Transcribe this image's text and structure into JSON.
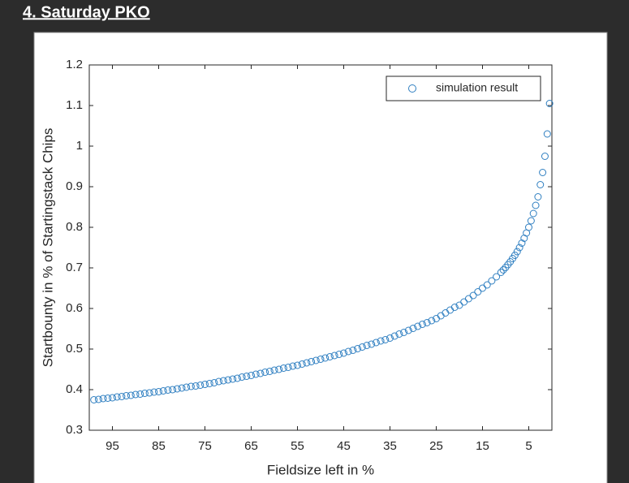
{
  "header": {
    "title": "4. Saturday PKO"
  },
  "chart_data": {
    "type": "scatter",
    "xlabel": "Fieldsize left in %",
    "ylabel": "Startbounty in % of Startingstack Chips",
    "xlim": [
      100,
      0
    ],
    "ylim": [
      0.3,
      1.2
    ],
    "xticks": [
      95,
      85,
      75,
      65,
      55,
      45,
      35,
      25,
      15,
      5
    ],
    "yticks": [
      0.3,
      0.4,
      0.5,
      0.6,
      0.7,
      0.8,
      0.9,
      1,
      1.1,
      1.2
    ],
    "legend": "upper right",
    "series": [
      {
        "name": "simulation result",
        "color": "#2f7fc1",
        "x": [
          99,
          98,
          97,
          96,
          95,
          94,
          93,
          92,
          91,
          90,
          89,
          88,
          87,
          86,
          85,
          84,
          83,
          82,
          81,
          80,
          79,
          78,
          77,
          76,
          75,
          74,
          73,
          72,
          71,
          70,
          69,
          68,
          67,
          66,
          65,
          64,
          63,
          62,
          61,
          60,
          59,
          58,
          57,
          56,
          55,
          54,
          53,
          52,
          51,
          50,
          49,
          48,
          47,
          46,
          45,
          44,
          43,
          42,
          41,
          40,
          39,
          38,
          37,
          36,
          35,
          34,
          33,
          32,
          31,
          30,
          29,
          28,
          27,
          26,
          25,
          24,
          23,
          22,
          21,
          20,
          19,
          18,
          17,
          16,
          15,
          14,
          13,
          12,
          11,
          10.5,
          10,
          9.5,
          9,
          8.5,
          8,
          7.5,
          7,
          6.5,
          6,
          5.5,
          5,
          4.5,
          4,
          3.5,
          3,
          2.5,
          2,
          1.5,
          1,
          0.5
        ],
        "values": [
          0.375,
          0.376,
          0.378,
          0.379,
          0.38,
          0.382,
          0.383,
          0.385,
          0.386,
          0.388,
          0.389,
          0.391,
          0.392,
          0.394,
          0.395,
          0.397,
          0.399,
          0.4,
          0.402,
          0.404,
          0.406,
          0.408,
          0.409,
          0.411,
          0.413,
          0.415,
          0.417,
          0.42,
          0.422,
          0.424,
          0.426,
          0.428,
          0.431,
          0.433,
          0.435,
          0.438,
          0.44,
          0.443,
          0.445,
          0.448,
          0.45,
          0.453,
          0.455,
          0.458,
          0.46,
          0.463,
          0.466,
          0.469,
          0.472,
          0.475,
          0.478,
          0.481,
          0.484,
          0.487,
          0.49,
          0.494,
          0.497,
          0.501,
          0.505,
          0.509,
          0.512,
          0.516,
          0.52,
          0.523,
          0.527,
          0.532,
          0.537,
          0.541,
          0.546,
          0.551,
          0.556,
          0.561,
          0.565,
          0.57,
          0.575,
          0.582,
          0.589,
          0.596,
          0.603,
          0.608,
          0.616,
          0.624,
          0.632,
          0.641,
          0.65,
          0.658,
          0.668,
          0.678,
          0.689,
          0.695,
          0.701,
          0.708,
          0.715,
          0.723,
          0.731,
          0.74,
          0.75,
          0.761,
          0.773,
          0.786,
          0.8,
          0.816,
          0.834,
          0.854,
          0.875,
          0.905,
          0.935,
          0.975,
          1.03,
          1.105
        ]
      }
    ]
  }
}
